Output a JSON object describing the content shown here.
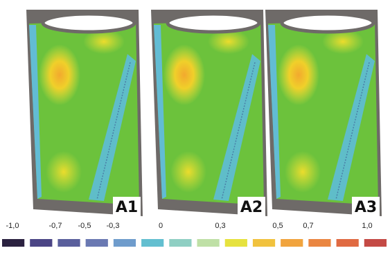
{
  "panels": [
    {
      "label": "A1"
    },
    {
      "label": "A2"
    },
    {
      "label": "A3"
    }
  ],
  "colorbar": {
    "labels": [
      "-1,0",
      "-0,7",
      "-0,5",
      "-0,3",
      "0",
      "0,3",
      "0,5",
      "0,7",
      "1,0"
    ],
    "colors": [
      "#2b2240",
      "#4b4585",
      "#5a5f9c",
      "#6a79b2",
      "#6f9ccc",
      "#63bfd0",
      "#8fcfc3",
      "#bfe0a6",
      "#e6e23f",
      "#f1c23e",
      "#f1a43e",
      "#ea8641",
      "#e06a42",
      "#c44a45"
    ]
  }
}
